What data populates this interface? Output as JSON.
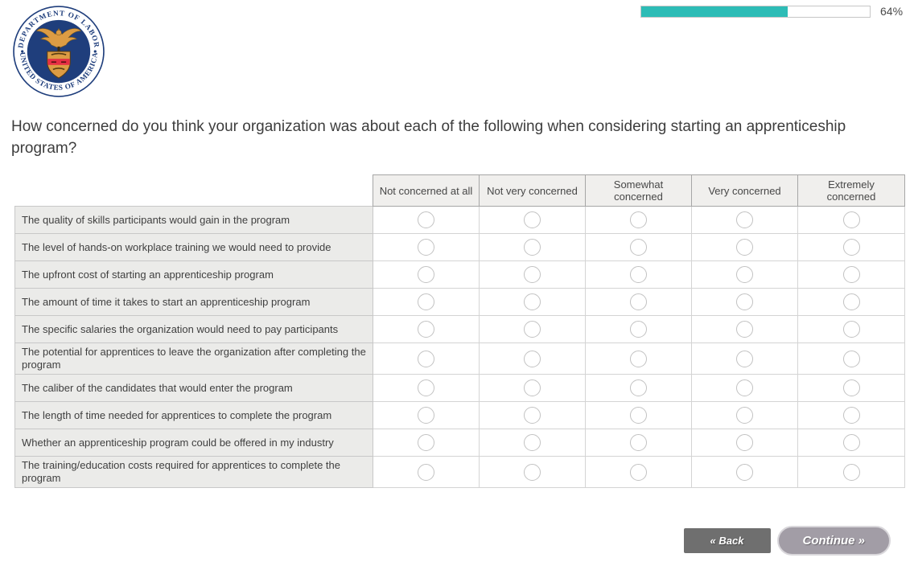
{
  "header": {
    "seal": {
      "top_text": "DEPARTMENT OF LABOR",
      "bottom_text": "UNITED STATES OF AMERICA"
    },
    "progress": {
      "percent": 64,
      "label": "64%"
    }
  },
  "question": {
    "text": "How concerned do you think your organization was about each of the following when considering starting an apprenticeship program?"
  },
  "table": {
    "columns": [
      "Not concerned at all",
      "Not very concerned",
      "Somewhat concerned",
      "Very concerned",
      "Extremely concerned"
    ],
    "rows": [
      {
        "label": "The quality of skills participants would gain in the program",
        "selected": null
      },
      {
        "label": "The level of hands-on workplace training we would need to provide",
        "selected": null
      },
      {
        "label": "The upfront cost of starting an apprenticeship program",
        "selected": null
      },
      {
        "label": "The amount of time it takes to start an apprenticeship program",
        "selected": null
      },
      {
        "label": "The specific salaries the organization would need to pay participants",
        "selected": null
      },
      {
        "label": "The potential for apprentices to leave the organization after completing the program",
        "selected": null
      },
      {
        "label": "The caliber of the candidates that would enter the program",
        "selected": null
      },
      {
        "label": "The length of time needed for apprentices to complete the program",
        "selected": null
      },
      {
        "label": "Whether an apprenticeship program could be offered in my industry",
        "selected": null
      },
      {
        "label": "The training/education costs required for apprentices to complete the program",
        "selected": null
      }
    ]
  },
  "footer": {
    "back_label": "« Back",
    "continue_label": "Continue »"
  },
  "colors": {
    "progress_fill": "#2DBCB6",
    "back_button_bg": "#6F6F6F",
    "continue_button_bg": "#A29DA6",
    "seal_navy": "#1F3E7C",
    "seal_gold": "#DC9C44",
    "seal_red": "#E62E44"
  }
}
